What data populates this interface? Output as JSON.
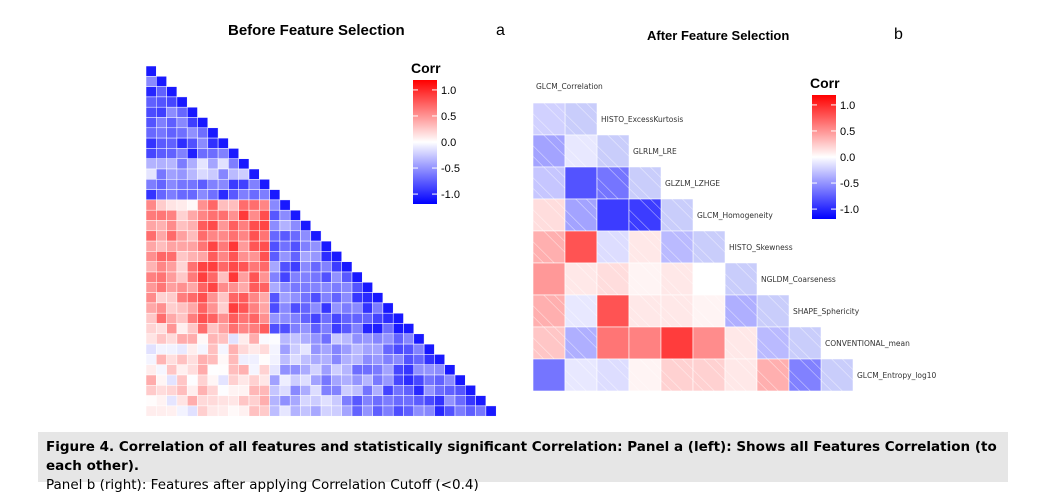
{
  "chart_data": [
    {
      "type": "heatmap",
      "title": "Before Feature Selection",
      "panel_label": "a",
      "legend_title": "Corr",
      "legend_ticks": [
        "1.0",
        "0.5",
        "0.0",
        "-0.5",
        "-1.0"
      ],
      "color_low": "#1a1ae6",
      "color_mid": "#ffffff",
      "color_high": "#e61a1a",
      "layout": "lower-triangle",
      "n_features": 34
    },
    {
      "type": "heatmap",
      "title": "After Feature Selection",
      "panel_label": "b",
      "legend_title": "Corr",
      "legend_ticks": [
        "1.0",
        "0.5",
        "0.0",
        "-0.5",
        "-1.0"
      ],
      "layout": "lower-triangle",
      "features": [
        "GLCM_Correlation",
        "HISTO_ExcessKurtosis",
        "GLRLM_LRE",
        "GLZLM_LZHGE",
        "GLCM_Homogeneity",
        "HISTO_Skewness",
        "NGLDM_Coarseness",
        "SHAPE_Sphericity",
        "CONVENTIONAL_mean",
        "GLCM_Entropy_log10"
      ],
      "values": [
        [
          -0.2
        ],
        [
          -0.4,
          -0.1
        ],
        [
          -0.25,
          -0.75,
          -0.6
        ],
        [
          0.15,
          -0.4,
          -0.85,
          -0.85
        ],
        [
          0.35,
          0.75,
          -0.15,
          0.1,
          -0.3
        ],
        [
          0.45,
          0.1,
          0.15,
          0.05,
          0.1,
          0.0
        ],
        [
          0.35,
          -0.1,
          0.75,
          0.1,
          0.1,
          0.05,
          -0.35
        ],
        [
          0.25,
          -0.35,
          0.6,
          0.55,
          0.85,
          0.5,
          0.1,
          -0.3
        ],
        [
          -0.6,
          -0.1,
          -0.15,
          0.05,
          0.2,
          0.2,
          0.1,
          0.35,
          -0.55
        ]
      ]
    }
  ],
  "caption": {
    "bold": "Figure 4. Correlation of all features and statistically significant Correlation: Panel a (left): Shows all Features Correlation (to each other).",
    "normal": "Panel b (right): Features after applying Correlation Cutoff (<0.4)"
  }
}
